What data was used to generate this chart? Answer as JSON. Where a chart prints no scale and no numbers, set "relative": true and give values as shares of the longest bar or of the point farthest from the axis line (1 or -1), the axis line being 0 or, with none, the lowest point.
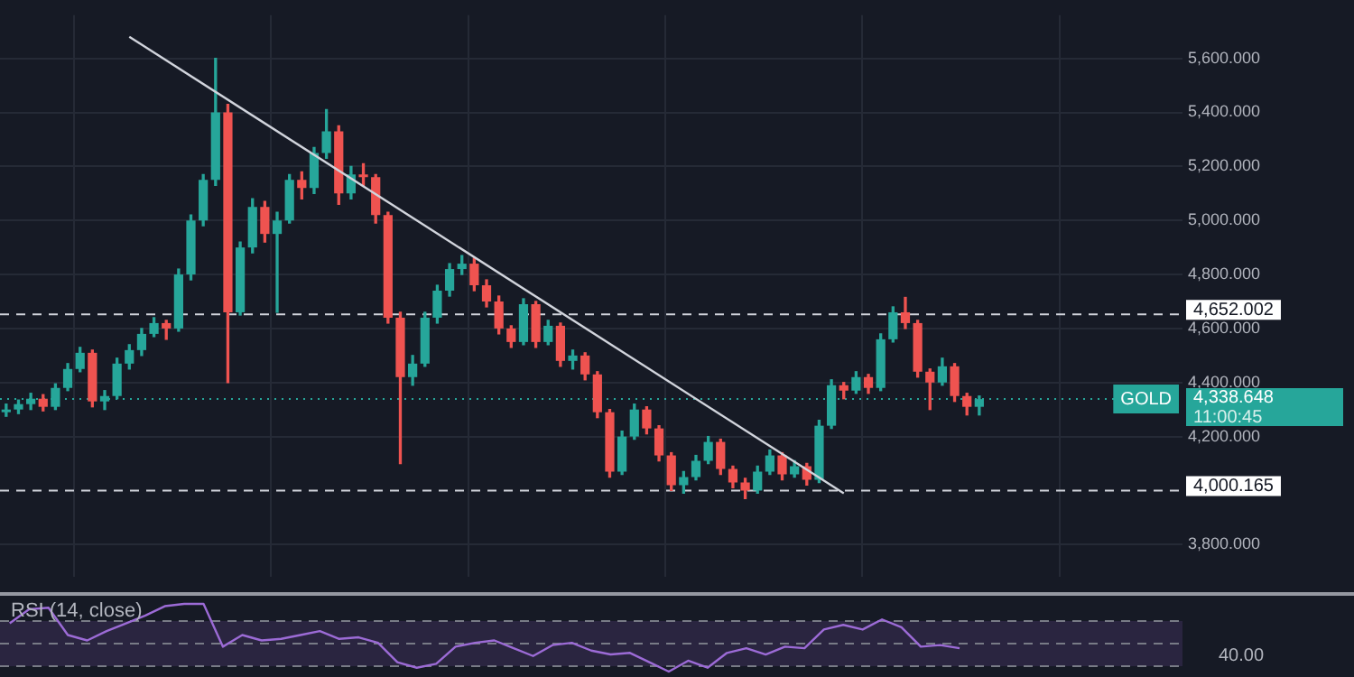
{
  "chart_data": [
    {
      "type": "candlestick",
      "categories": [
        null,
        null,
        null,
        null,
        null,
        null,
        null,
        null,
        null,
        null,
        null,
        null,
        null,
        null,
        null,
        null,
        null,
        null,
        null,
        null,
        null,
        null,
        null,
        null,
        null,
        null,
        null,
        null,
        null,
        null,
        null,
        null,
        null,
        null,
        null,
        null,
        null,
        null,
        null,
        null,
        null,
        null,
        null,
        null,
        null,
        null,
        null,
        null,
        null,
        null,
        null,
        null,
        null,
        null,
        null,
        null,
        null,
        null,
        null,
        null,
        null,
        null,
        null,
        null,
        null,
        null,
        null,
        null,
        null,
        null,
        null,
        null,
        null,
        null,
        null,
        null,
        null,
        null,
        null,
        null,
        null,
        null,
        null,
        null,
        null,
        null,
        null,
        null,
        null,
        null,
        null,
        null,
        null,
        null,
        null,
        null
      ],
      "ohlc": [
        [
          4290,
          4320,
          4275,
          4300
        ],
        [
          4300,
          4335,
          4285,
          4320
        ],
        [
          4320,
          4360,
          4300,
          4340
        ],
        [
          4340,
          4355,
          4295,
          4310
        ],
        [
          4310,
          4395,
          4300,
          4380
        ],
        [
          4380,
          4470,
          4370,
          4450
        ],
        [
          4450,
          4530,
          4440,
          4510
        ],
        [
          4510,
          4520,
          4310,
          4330
        ],
        [
          4330,
          4370,
          4300,
          4350
        ],
        [
          4350,
          4490,
          4340,
          4470
        ],
        [
          4470,
          4540,
          4450,
          4520
        ],
        [
          4520,
          4600,
          4500,
          4580
        ],
        [
          4580,
          4640,
          4570,
          4620
        ],
        [
          4620,
          4630,
          4560,
          4600
        ],
        [
          4600,
          4820,
          4590,
          4800
        ],
        [
          4800,
          5020,
          4780,
          5000
        ],
        [
          5000,
          5170,
          4980,
          5150
        ],
        [
          5150,
          5600,
          5130,
          5400
        ],
        [
          5400,
          5430,
          4400,
          4660
        ],
        [
          4660,
          4920,
          4650,
          4900
        ],
        [
          4900,
          5080,
          4880,
          5050
        ],
        [
          5050,
          5070,
          4920,
          4950
        ],
        [
          4950,
          5030,
          4660,
          5000
        ],
        [
          5000,
          5170,
          4990,
          5150
        ],
        [
          5150,
          5180,
          5080,
          5120
        ],
        [
          5120,
          5270,
          5100,
          5250
        ],
        [
          5250,
          5410,
          5230,
          5330
        ],
        [
          5330,
          5350,
          5060,
          5100
        ],
        [
          5100,
          5200,
          5080,
          5170
        ],
        [
          5170,
          5210,
          5130,
          5160
        ],
        [
          5160,
          5170,
          4990,
          5020
        ],
        [
          5020,
          5030,
          4620,
          4640
        ],
        [
          4640,
          4660,
          4100,
          4420
        ],
        [
          4420,
          4500,
          4390,
          4470
        ],
        [
          4470,
          4660,
          4460,
          4640
        ],
        [
          4640,
          4760,
          4620,
          4740
        ],
        [
          4740,
          4840,
          4720,
          4820
        ],
        [
          4820,
          4870,
          4800,
          4840
        ],
        [
          4840,
          4860,
          4740,
          4760
        ],
        [
          4760,
          4780,
          4680,
          4700
        ],
        [
          4700,
          4720,
          4580,
          4600
        ],
        [
          4600,
          4610,
          4530,
          4550
        ],
        [
          4550,
          4710,
          4540,
          4690
        ],
        [
          4690,
          4700,
          4530,
          4550
        ],
        [
          4550,
          4630,
          4540,
          4610
        ],
        [
          4610,
          4620,
          4460,
          4480
        ],
        [
          4480,
          4520,
          4450,
          4500
        ],
        [
          4500,
          4510,
          4410,
          4430
        ],
        [
          4430,
          4440,
          4270,
          4290
        ],
        [
          4290,
          4300,
          4050,
          4070
        ],
        [
          4070,
          4220,
          4060,
          4200
        ],
        [
          4200,
          4320,
          4190,
          4300
        ],
        [
          4300,
          4310,
          4210,
          4230
        ],
        [
          4230,
          4240,
          4110,
          4130
        ],
        [
          4130,
          4140,
          4000,
          4020
        ],
        [
          4020,
          4070,
          3990,
          4050
        ],
        [
          4050,
          4130,
          4040,
          4110
        ],
        [
          4110,
          4200,
          4100,
          4180
        ],
        [
          4180,
          4190,
          4060,
          4080
        ],
        [
          4080,
          4090,
          4010,
          4030
        ],
        [
          4030,
          4045,
          3970,
          4000
        ],
        [
          4000,
          4090,
          3990,
          4070
        ],
        [
          4070,
          4150,
          4060,
          4130
        ],
        [
          4130,
          4140,
          4040,
          4060
        ],
        [
          4060,
          4110,
          4050,
          4090
        ],
        [
          4090,
          4100,
          4020,
          4040
        ],
        [
          4040,
          4260,
          4030,
          4240
        ],
        [
          4240,
          4410,
          4230,
          4390
        ],
        [
          4390,
          4400,
          4340,
          4370
        ],
        [
          4370,
          4440,
          4360,
          4420
        ],
        [
          4420,
          4430,
          4360,
          4380
        ],
        [
          4380,
          4580,
          4370,
          4560
        ],
        [
          4560,
          4680,
          4550,
          4660
        ],
        [
          4660,
          4715,
          4600,
          4620
        ],
        [
          4620,
          4630,
          4420,
          4440
        ],
        [
          4440,
          4450,
          4300,
          4400
        ],
        [
          4400,
          4490,
          4390,
          4460
        ],
        [
          4460,
          4470,
          4330,
          4350
        ],
        [
          4350,
          4360,
          4280,
          4310
        ],
        [
          4310,
          4350,
          4280,
          4338.648
        ],
        null,
        null,
        null,
        null,
        null,
        null,
        null,
        null,
        null,
        null,
        null,
        null,
        null,
        null,
        null,
        null
      ],
      "series": [
        {
          "type": "line",
          "color": "#d1d4dc",
          "values": [
            null,
            null,
            null,
            null,
            null,
            null,
            null,
            null,
            null,
            null,
            5680,
            null,
            null,
            null,
            null,
            null,
            null,
            null,
            null,
            null,
            null,
            null,
            null,
            null,
            null,
            null,
            null,
            null,
            null,
            null,
            null,
            null,
            null,
            null,
            null,
            null,
            null,
            null,
            null,
            null,
            null,
            null,
            null,
            null,
            null,
            null,
            null,
            null,
            null,
            null,
            null,
            null,
            null,
            null,
            null,
            null,
            null,
            null,
            null,
            null,
            null,
            null,
            null,
            null,
            null,
            null,
            null,
            null,
            3990,
            null,
            null,
            null,
            null,
            null,
            null,
            null,
            null,
            null,
            null,
            null,
            null,
            null,
            null,
            null,
            null,
            null,
            null,
            null,
            null,
            null,
            null,
            null,
            null,
            null,
            null,
            null
          ]
        }
      ],
      "ylim": [
        3680,
        5760
      ],
      "yticks": [
        {
          "value": 3800,
          "label": "3,800.000"
        },
        {
          "value": 4000,
          "label": null
        },
        {
          "value": 4200,
          "label": "4,200.000"
        },
        {
          "value": 4400,
          "label": "4,400.000"
        },
        {
          "value": 4600,
          "label": "4,600.000"
        },
        {
          "value": 4800,
          "label": "4,800.000"
        },
        {
          "value": 5000,
          "label": "5,000.000"
        },
        {
          "value": 5200,
          "label": "5,200.000"
        },
        {
          "value": 5400,
          "label": "5,400.000"
        },
        {
          "value": 5600,
          "label": "5,600.000"
        }
      ],
      "ref_lines": [
        {
          "axis": "y",
          "value": 4652.002,
          "label": "4,652.002",
          "color": "#d1d4dc",
          "line_style": "dashed"
        },
        {
          "axis": "y",
          "value": 4000.165,
          "label": "4,000.165",
          "color": "#d1d4dc",
          "line_style": "dashed"
        },
        {
          "axis": "y",
          "value": 4338.648,
          "label": "4,338.648",
          "color": "#26a69a",
          "line_style": "dotted"
        }
      ],
      "annotations": [
        "GOLD",
        "11:00:45"
      ],
      "grid": true,
      "legend": false,
      "tick_labels": "y"
    },
    {
      "type": "line",
      "relative": true,
      "title": "RSI (14, close)",
      "categories": [
        null,
        null,
        null,
        null,
        null,
        null,
        null,
        null,
        null,
        null,
        null,
        null,
        null,
        null,
        null,
        null,
        null,
        null,
        null,
        null,
        null,
        null,
        null,
        null,
        null,
        null,
        null,
        null,
        null,
        null,
        null,
        null,
        null,
        null,
        null,
        null,
        null,
        null,
        null,
        null,
        null,
        null,
        null,
        null,
        null,
        null,
        null,
        null,
        null,
        null,
        null,
        null,
        null,
        null,
        null,
        null,
        null,
        null,
        null,
        null,
        null
      ],
      "series": [
        {
          "color": "#9c6bd6",
          "values": [
            0.713,
            0.92,
            0.943,
            0.54,
            0.46,
            0.598,
            0.713,
            0.828,
            0.966,
            1,
            1,
            0.368,
            0.54,
            0.46,
            0.483,
            0.54,
            0.598,
            0.483,
            0.506,
            0.425,
            0.138,
            0.057,
            0.115,
            0.368,
            0.425,
            0.46,
            0.345,
            0.23,
            0.391,
            0.425,
            0.31,
            0.253,
            0.276,
            0.138,
            0,
            0.161,
            0.057,
            0.276,
            0.345,
            0.253,
            0.368,
            0.345,
            0.621,
            0.69,
            0.621,
            0.77,
            0.655,
            0.368,
            0.391,
            0.345,
            null,
            null,
            null,
            null,
            null,
            null,
            null,
            null,
            null,
            null,
            null
          ]
        }
      ],
      "ref_lines": [
        {
          "axis": "y",
          "value": 0.747,
          "color": "#787b86",
          "line_style": "dashed"
        },
        {
          "axis": "y",
          "value": 0.414,
          "color": "#787b86",
          "line_style": "dashed"
        },
        {
          "axis": "y",
          "value": 0.08,
          "color": "#787b86",
          "line_style": "dashed"
        }
      ],
      "bands": [
        {
          "axis": "y",
          "from": 0.08,
          "to": 0.747,
          "color": "#2a2540"
        }
      ],
      "annotations": [
        "40.00"
      ],
      "grid": false,
      "legend": false,
      "tick_labels": false,
      "marker": "none"
    }
  ]
}
